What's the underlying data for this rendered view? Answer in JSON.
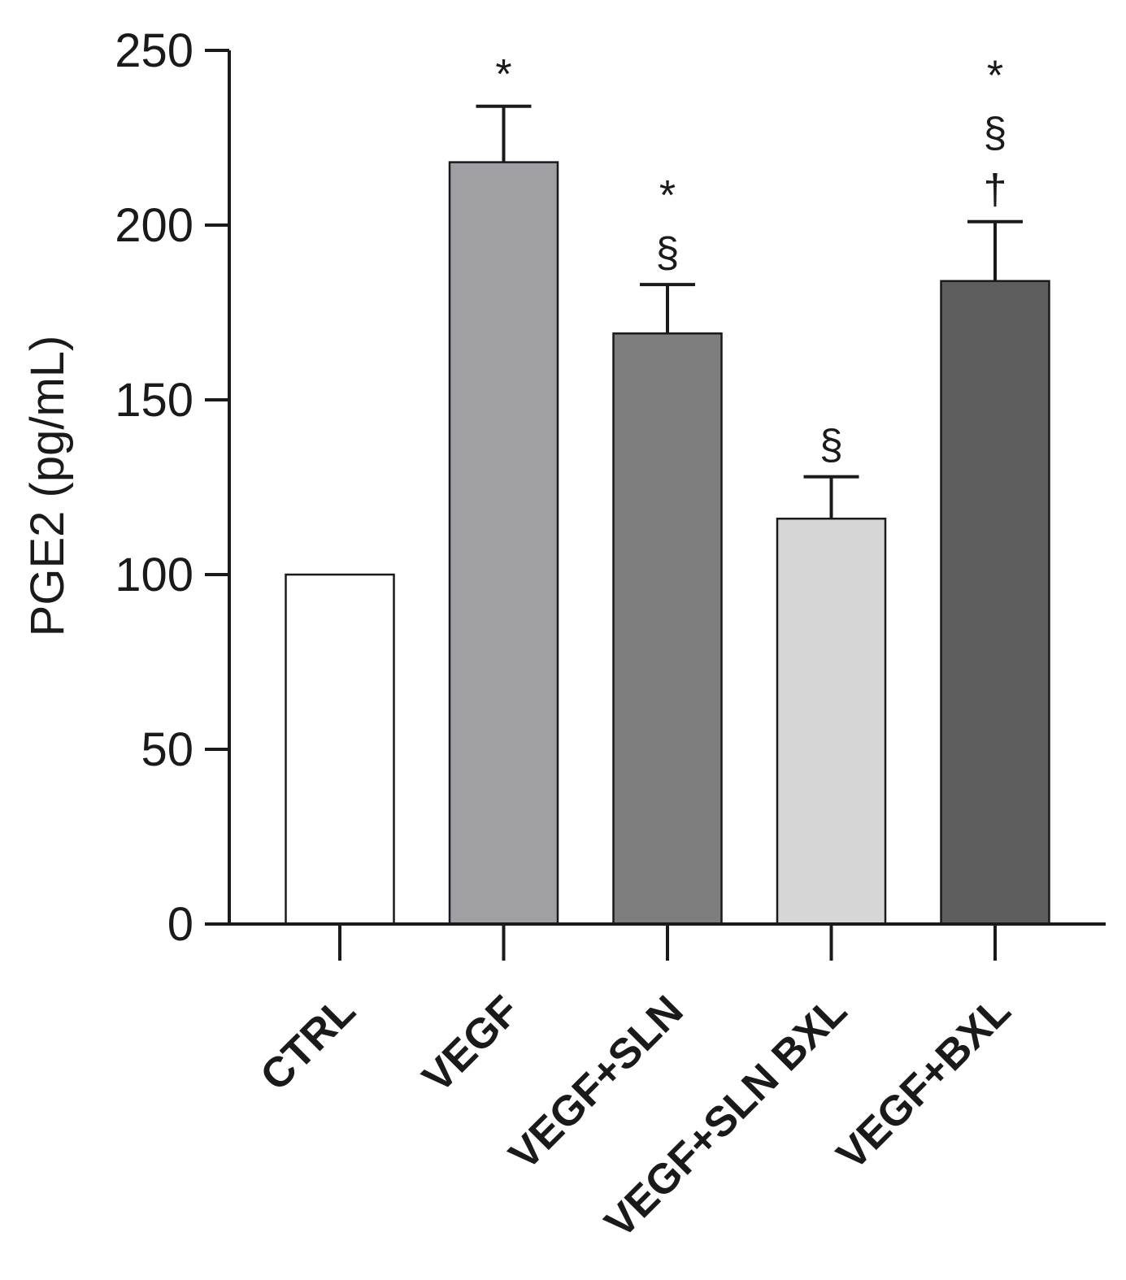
{
  "chart_data": {
    "type": "bar",
    "title": "",
    "xlabel": "",
    "ylabel": "PGE2 (pg/mL)",
    "ylim": [
      0,
      250
    ],
    "yticks": [
      0,
      50,
      100,
      150,
      200,
      250
    ],
    "grid": false,
    "categories": [
      "CTRL",
      "VEGF",
      "VEGF+SLN",
      "VEGF+SLN BXL",
      "VEGF+BXL"
    ],
    "values": [
      100,
      218,
      169,
      116,
      184
    ],
    "errors": [
      0,
      16,
      14,
      12,
      17
    ],
    "colors": [
      "#ffffff",
      "#a0a0a4",
      "#7e7e7e",
      "#d6d6d6",
      "#5e5e5e"
    ],
    "annotations": [
      [],
      [
        "*"
      ],
      [
        "*",
        "§"
      ],
      [
        "§"
      ],
      [
        "*",
        "§",
        "†"
      ]
    ]
  }
}
